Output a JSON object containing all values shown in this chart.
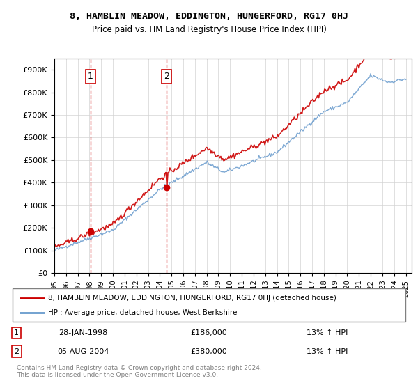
{
  "title": "8, HAMBLIN MEADOW, EDDINGTON, HUNGERFORD, RG17 0HJ",
  "subtitle": "Price paid vs. HM Land Registry's House Price Index (HPI)",
  "legend_line1": "8, HAMBLIN MEADOW, EDDINGTON, HUNGERFORD, RG17 0HJ (detached house)",
  "legend_line2": "HPI: Average price, detached house, West Berkshire",
  "sale1_label": "1",
  "sale1_date": "28-JAN-1998",
  "sale1_price": "£186,000",
  "sale1_hpi": "13% ↑ HPI",
  "sale2_label": "2",
  "sale2_date": "05-AUG-2004",
  "sale2_price": "£380,000",
  "sale2_hpi": "13% ↑ HPI",
  "footer": "Contains HM Land Registry data © Crown copyright and database right 2024.\nThis data is licensed under the Open Government Licence v3.0.",
  "red_color": "#cc0000",
  "blue_color": "#6699cc",
  "marker_color": "#cc0000",
  "sale1_year": 1998.07,
  "sale1_value": 186000,
  "sale2_year": 2004.59,
  "sale2_value": 380000,
  "ylim": [
    0,
    950000
  ],
  "xlim_start": 1995.0,
  "xlim_end": 2025.5
}
